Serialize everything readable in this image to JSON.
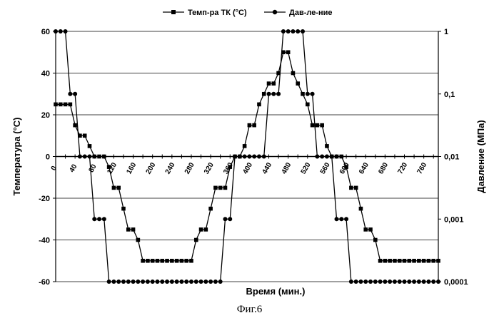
{
  "caption": "Фиг.6",
  "colors": {
    "axis": "#000000",
    "series": "#000000",
    "grid": "#000000"
  },
  "chart_data": {
    "type": "line",
    "title": "",
    "xlabel": "Время (мин.)",
    "ylabel": "Температура (°С)",
    "y2label": "Давление (МПа)",
    "xlim": [
      0,
      790
    ],
    "ylim": [
      -60,
      60
    ],
    "y2lim": [
      0.0001,
      1
    ],
    "y2scale": "log",
    "grid": "horizontal",
    "legend_position": "top",
    "x_ticks": [
      "0",
      "40",
      "80",
      "120",
      "160",
      "200",
      "240",
      "280",
      "320",
      "360",
      "400",
      "440",
      "480",
      "520",
      "560",
      "600",
      "640",
      "680",
      "720",
      "760"
    ],
    "y_ticks": [
      "60",
      "40",
      "20",
      "0",
      "-20",
      "-40",
      "-60"
    ],
    "y2_ticks": [
      "1",
      "0,1",
      "0,01",
      "0,001",
      "0,0001"
    ],
    "series": [
      {
        "name": "Темп-ра ТК (°С)",
        "marker": "square",
        "axis": "left",
        "x": [
          0,
          10,
          20,
          30,
          40,
          50,
          60,
          70,
          80,
          90,
          100,
          110,
          120,
          130,
          140,
          150,
          160,
          170,
          180,
          190,
          200,
          210,
          220,
          230,
          240,
          250,
          260,
          270,
          280,
          290,
          300,
          310,
          320,
          330,
          340,
          350,
          360,
          370,
          380,
          390,
          400,
          410,
          420,
          430,
          440,
          450,
          460,
          470,
          480,
          490,
          500,
          510,
          520,
          530,
          540,
          550,
          560,
          570,
          580,
          590,
          600,
          610,
          620,
          630,
          640,
          650,
          660,
          670,
          680,
          690,
          700,
          710,
          720,
          730,
          740,
          750,
          760,
          770,
          780,
          790
        ],
        "values": [
          25,
          25,
          25,
          25,
          15,
          10,
          10,
          5,
          0,
          0,
          0,
          -5,
          -15,
          -15,
          -25,
          -35,
          -35,
          -40,
          -50,
          -50,
          -50,
          -50,
          -50,
          -50,
          -50,
          -50,
          -50,
          -50,
          -50,
          -40,
          -35,
          -35,
          -25,
          -15,
          -15,
          -15,
          -5,
          0,
          0,
          5,
          15,
          15,
          25,
          30,
          35,
          35,
          40,
          50,
          50,
          40,
          35,
          30,
          25,
          15,
          15,
          15,
          5,
          0,
          0,
          0,
          -5,
          -15,
          -15,
          -25,
          -35,
          -35,
          -40,
          -50,
          -50,
          -50,
          -50,
          -50,
          -50,
          -50,
          -50,
          -50,
          -50,
          -50,
          -50,
          -50
        ]
      },
      {
        "name": "Дав-ле-ние",
        "marker": "circle",
        "axis": "right",
        "x": [
          0,
          10,
          20,
          30,
          40,
          50,
          60,
          70,
          80,
          90,
          100,
          110,
          120,
          130,
          140,
          150,
          160,
          170,
          180,
          190,
          200,
          210,
          220,
          230,
          240,
          250,
          260,
          270,
          280,
          290,
          300,
          310,
          320,
          330,
          340,
          350,
          360,
          370,
          380,
          390,
          400,
          410,
          420,
          430,
          440,
          450,
          460,
          470,
          480,
          490,
          500,
          510,
          520,
          530,
          540,
          550,
          560,
          570,
          580,
          590,
          600,
          610,
          620,
          630,
          640,
          650,
          660,
          670,
          680,
          690,
          700,
          710,
          720,
          730,
          740,
          750,
          760,
          770,
          780,
          790
        ],
        "values": [
          1,
          1,
          1,
          0.1,
          0.1,
          0.01,
          0.01,
          0.01,
          0.001,
          0.001,
          0.001,
          0.0001,
          0.0001,
          0.0001,
          0.0001,
          0.0001,
          0.0001,
          0.0001,
          0.0001,
          0.0001,
          0.0001,
          0.0001,
          0.0001,
          0.0001,
          0.0001,
          0.0001,
          0.0001,
          0.0001,
          0.0001,
          0.0001,
          0.0001,
          0.0001,
          0.0001,
          0.0001,
          0.0001,
          0.001,
          0.001,
          0.01,
          0.01,
          0.01,
          0.01,
          0.01,
          0.01,
          0.01,
          0.1,
          0.1,
          0.1,
          1,
          1,
          1,
          1,
          1,
          0.1,
          0.1,
          0.01,
          0.01,
          0.01,
          0.01,
          0.001,
          0.001,
          0.001,
          0.0001,
          0.0001,
          0.0001,
          0.0001,
          0.0001,
          0.0001,
          0.0001,
          0.0001,
          0.0001,
          0.0001,
          0.0001,
          0.0001,
          0.0001,
          0.0001,
          0.0001,
          0.0001,
          0.0001,
          0.0001,
          0.0001
        ]
      }
    ]
  }
}
